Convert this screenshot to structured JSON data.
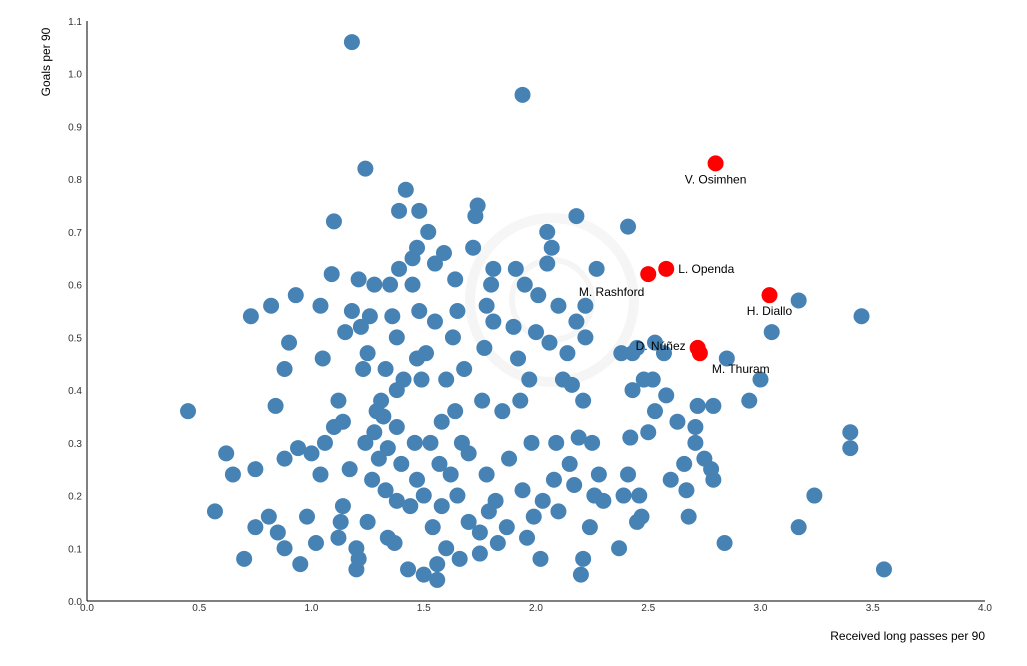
{
  "chart_data": {
    "type": "scatter",
    "xlabel": "Received long passes per 90",
    "ylabel": "Goals per 90",
    "xlim": [
      0,
      4.0
    ],
    "ylim": [
      0,
      1.1
    ],
    "xticks": [
      "0.0",
      "0.5",
      "1.0",
      "1.5",
      "2.0",
      "2.5",
      "3.0",
      "3.5",
      "4.0"
    ],
    "yticks": [
      "0.0",
      "0.1",
      "0.2",
      "0.3",
      "0.4",
      "0.5",
      "0.6",
      "0.7",
      "0.8",
      "0.9",
      "1.0",
      "1.1"
    ],
    "grid": false,
    "colors": {
      "default": "#4682b4",
      "highlight": "#ff0000"
    },
    "highlighted": [
      {
        "label": "V. Osimhen",
        "x": 2.8,
        "y": 0.83
      },
      {
        "label": "L. Openda",
        "x": 2.58,
        "y": 0.63
      },
      {
        "label": "M. Rashford",
        "x": 2.5,
        "y": 0.62
      },
      {
        "label": "H. Diallo",
        "x": 3.04,
        "y": 0.58
      },
      {
        "label": "D. Núñez",
        "x": 2.72,
        "y": 0.48
      },
      {
        "label": "M. Thuram",
        "x": 2.73,
        "y": 0.47
      }
    ],
    "points": [
      [
        0.45,
        0.36
      ],
      [
        1.18,
        1.06
      ],
      [
        1.94,
        0.96
      ],
      [
        1.24,
        0.82
      ],
      [
        1.1,
        0.72
      ],
      [
        0.73,
        0.54
      ],
      [
        0.82,
        0.56
      ],
      [
        0.93,
        0.58
      ],
      [
        0.9,
        0.49
      ],
      [
        0.88,
        0.44
      ],
      [
        0.84,
        0.37
      ],
      [
        0.57,
        0.17
      ],
      [
        0.62,
        0.28
      ],
      [
        0.65,
        0.24
      ],
      [
        0.7,
        0.08
      ],
      [
        0.75,
        0.14
      ],
      [
        0.75,
        0.25
      ],
      [
        0.81,
        0.16
      ],
      [
        0.85,
        0.13
      ],
      [
        0.88,
        0.1
      ],
      [
        0.88,
        0.27
      ],
      [
        0.94,
        0.29
      ],
      [
        0.95,
        0.07
      ],
      [
        0.98,
        0.16
      ],
      [
        1.0,
        0.28
      ],
      [
        1.02,
        0.11
      ],
      [
        1.04,
        0.24
      ],
      [
        1.05,
        0.46
      ],
      [
        1.04,
        0.56
      ],
      [
        1.06,
        0.3
      ],
      [
        1.09,
        0.62
      ],
      [
        1.1,
        0.33
      ],
      [
        1.12,
        0.38
      ],
      [
        1.12,
        0.12
      ],
      [
        1.13,
        0.15
      ],
      [
        1.14,
        0.18
      ],
      [
        1.14,
        0.34
      ],
      [
        1.15,
        0.51
      ],
      [
        1.17,
        0.25
      ],
      [
        1.18,
        0.55
      ],
      [
        1.2,
        0.1
      ],
      [
        1.2,
        0.06
      ],
      [
        1.21,
        0.08
      ],
      [
        1.21,
        0.61
      ],
      [
        1.22,
        0.52
      ],
      [
        1.23,
        0.44
      ],
      [
        1.24,
        0.3
      ],
      [
        1.25,
        0.47
      ],
      [
        1.25,
        0.15
      ],
      [
        1.26,
        0.54
      ],
      [
        1.27,
        0.23
      ],
      [
        1.28,
        0.32
      ],
      [
        1.28,
        0.6
      ],
      [
        1.29,
        0.36
      ],
      [
        1.3,
        0.27
      ],
      [
        1.31,
        0.38
      ],
      [
        1.32,
        0.35
      ],
      [
        1.33,
        0.44
      ],
      [
        1.33,
        0.21
      ],
      [
        1.34,
        0.29
      ],
      [
        1.34,
        0.12
      ],
      [
        1.35,
        0.6
      ],
      [
        1.36,
        0.54
      ],
      [
        1.37,
        0.11
      ],
      [
        1.38,
        0.5
      ],
      [
        1.38,
        0.4
      ],
      [
        1.38,
        0.33
      ],
      [
        1.38,
        0.19
      ],
      [
        1.39,
        0.74
      ],
      [
        1.39,
        0.63
      ],
      [
        1.4,
        0.26
      ],
      [
        1.41,
        0.42
      ],
      [
        1.42,
        0.78
      ],
      [
        1.43,
        0.06
      ],
      [
        1.44,
        0.18
      ],
      [
        1.45,
        0.6
      ],
      [
        1.45,
        0.65
      ],
      [
        1.46,
        0.3
      ],
      [
        1.47,
        0.67
      ],
      [
        1.47,
        0.46
      ],
      [
        1.47,
        0.23
      ],
      [
        1.48,
        0.74
      ],
      [
        1.48,
        0.55
      ],
      [
        1.49,
        0.42
      ],
      [
        1.5,
        0.05
      ],
      [
        1.5,
        0.2
      ],
      [
        1.51,
        0.47
      ],
      [
        1.52,
        0.7
      ],
      [
        1.53,
        0.3
      ],
      [
        1.54,
        0.14
      ],
      [
        1.55,
        0.53
      ],
      [
        1.55,
        0.64
      ],
      [
        1.56,
        0.07
      ],
      [
        1.56,
        0.04
      ],
      [
        1.57,
        0.26
      ],
      [
        1.58,
        0.34
      ],
      [
        1.58,
        0.18
      ],
      [
        1.59,
        0.66
      ],
      [
        1.6,
        0.42
      ],
      [
        1.6,
        0.1
      ],
      [
        1.62,
        0.24
      ],
      [
        1.63,
        0.5
      ],
      [
        1.64,
        0.36
      ],
      [
        1.64,
        0.61
      ],
      [
        1.65,
        0.55
      ],
      [
        1.65,
        0.2
      ],
      [
        1.66,
        0.08
      ],
      [
        1.67,
        0.3
      ],
      [
        1.68,
        0.44
      ],
      [
        1.7,
        0.15
      ],
      [
        1.7,
        0.28
      ],
      [
        1.72,
        0.67
      ],
      [
        1.73,
        0.73
      ],
      [
        1.74,
        0.75
      ],
      [
        1.75,
        0.13
      ],
      [
        1.75,
        0.09
      ],
      [
        1.76,
        0.38
      ],
      [
        1.77,
        0.48
      ],
      [
        1.78,
        0.56
      ],
      [
        1.78,
        0.24
      ],
      [
        1.79,
        0.17
      ],
      [
        1.8,
        0.6
      ],
      [
        1.81,
        0.63
      ],
      [
        1.81,
        0.53
      ],
      [
        1.82,
        0.19
      ],
      [
        1.83,
        0.11
      ],
      [
        1.85,
        0.36
      ],
      [
        1.87,
        0.14
      ],
      [
        1.88,
        0.27
      ],
      [
        1.9,
        0.52
      ],
      [
        1.91,
        0.63
      ],
      [
        1.92,
        0.46
      ],
      [
        1.93,
        0.38
      ],
      [
        1.94,
        0.21
      ],
      [
        1.95,
        0.6
      ],
      [
        1.96,
        0.12
      ],
      [
        1.97,
        0.42
      ],
      [
        1.98,
        0.3
      ],
      [
        1.99,
        0.16
      ],
      [
        2.0,
        0.51
      ],
      [
        2.01,
        0.58
      ],
      [
        2.02,
        0.08
      ],
      [
        2.03,
        0.19
      ],
      [
        2.05,
        0.64
      ],
      [
        2.05,
        0.7
      ],
      [
        2.06,
        0.49
      ],
      [
        2.07,
        0.67
      ],
      [
        2.08,
        0.23
      ],
      [
        2.09,
        0.3
      ],
      [
        2.1,
        0.17
      ],
      [
        2.1,
        0.56
      ],
      [
        2.12,
        0.42
      ],
      [
        2.14,
        0.47
      ],
      [
        2.15,
        0.26
      ],
      [
        2.16,
        0.41
      ],
      [
        2.17,
        0.22
      ],
      [
        2.18,
        0.53
      ],
      [
        2.18,
        0.73
      ],
      [
        2.19,
        0.31
      ],
      [
        2.2,
        0.05
      ],
      [
        2.21,
        0.08
      ],
      [
        2.21,
        0.38
      ],
      [
        2.22,
        0.5
      ],
      [
        2.22,
        0.56
      ],
      [
        2.24,
        0.14
      ],
      [
        2.25,
        0.3
      ],
      [
        2.26,
        0.2
      ],
      [
        2.27,
        0.63
      ],
      [
        2.28,
        0.24
      ],
      [
        2.3,
        0.19
      ],
      [
        2.37,
        0.1
      ],
      [
        2.38,
        0.47
      ],
      [
        2.39,
        0.2
      ],
      [
        2.41,
        0.71
      ],
      [
        2.41,
        0.24
      ],
      [
        2.42,
        0.31
      ],
      [
        2.43,
        0.47
      ],
      [
        2.43,
        0.4
      ],
      [
        2.45,
        0.48
      ],
      [
        2.45,
        0.15
      ],
      [
        2.46,
        0.2
      ],
      [
        2.47,
        0.16
      ],
      [
        2.48,
        0.42
      ],
      [
        2.5,
        0.32
      ],
      [
        2.52,
        0.42
      ],
      [
        2.53,
        0.36
      ],
      [
        2.53,
        0.49
      ],
      [
        2.57,
        0.47
      ],
      [
        2.58,
        0.39
      ],
      [
        2.6,
        0.23
      ],
      [
        2.63,
        0.34
      ],
      [
        2.66,
        0.26
      ],
      [
        2.67,
        0.21
      ],
      [
        2.68,
        0.16
      ],
      [
        2.71,
        0.3
      ],
      [
        2.71,
        0.33
      ],
      [
        2.72,
        0.37
      ],
      [
        2.75,
        0.27
      ],
      [
        2.78,
        0.25
      ],
      [
        2.79,
        0.37
      ],
      [
        2.79,
        0.23
      ],
      [
        2.84,
        0.11
      ],
      [
        2.85,
        0.46
      ],
      [
        2.95,
        0.38
      ],
      [
        3.0,
        0.42
      ],
      [
        3.05,
        0.51
      ],
      [
        3.17,
        0.57
      ],
      [
        3.17,
        0.14
      ],
      [
        3.24,
        0.2
      ],
      [
        3.4,
        0.32
      ],
      [
        3.4,
        0.29
      ],
      [
        3.45,
        0.54
      ],
      [
        3.55,
        0.06
      ]
    ]
  }
}
